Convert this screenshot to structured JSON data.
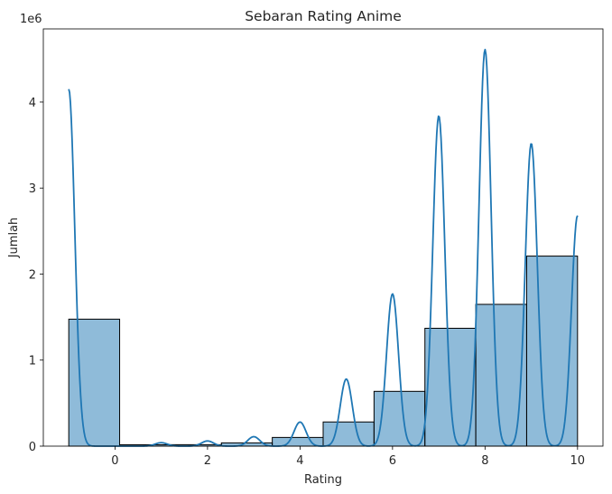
{
  "chart_data": {
    "type": "bar",
    "title": "Sebaran Rating Anime",
    "xlabel": "Rating",
    "ylabel": "Jumlah",
    "y_offset_text": "1e6",
    "xlim": [
      -1.55,
      10.55
    ],
    "ylim": [
      0,
      4.85
    ],
    "x_ticks": [
      0,
      2,
      4,
      6,
      8,
      10
    ],
    "y_ticks": [
      0,
      1,
      2,
      3,
      4
    ],
    "bar_color": "#1f77b4",
    "bar_fill_opacity": 0.5,
    "bar_edge_color": "#000000",
    "kde_color": "#1f77b4",
    "bins": [
      {
        "x0": -1.0,
        "x1": 0.1,
        "value": 1.476
      },
      {
        "x0": 0.1,
        "x1": 1.2,
        "value": 0.016
      },
      {
        "x0": 1.2,
        "x1": 2.3,
        "value": 0.017
      },
      {
        "x0": 2.3,
        "x1": 3.4,
        "value": 0.038
      },
      {
        "x0": 3.4,
        "x1": 4.5,
        "value": 0.101
      },
      {
        "x0": 4.5,
        "x1": 5.6,
        "value": 0.281
      },
      {
        "x0": 5.6,
        "x1": 6.7,
        "value": 0.637
      },
      {
        "x0": 6.7,
        "x1": 7.8,
        "value": 1.37
      },
      {
        "x0": 7.8,
        "x1": 8.9,
        "value": 1.648
      },
      {
        "x0": 8.9,
        "x1": 10.0,
        "value": 2.209
      }
    ],
    "kde_peaks": [
      {
        "x": -1.0,
        "height": 4.15
      },
      {
        "x": 1.0,
        "height": 0.04
      },
      {
        "x": 2.0,
        "height": 0.06
      },
      {
        "x": 3.0,
        "height": 0.11
      },
      {
        "x": 4.0,
        "height": 0.28
      },
      {
        "x": 5.0,
        "height": 0.78
      },
      {
        "x": 6.0,
        "height": 1.77
      },
      {
        "x": 7.0,
        "height": 3.84
      },
      {
        "x": 8.0,
        "height": 4.61
      },
      {
        "x": 9.0,
        "height": 3.52
      },
      {
        "x": 10.0,
        "height": 2.68
      }
    ],
    "kde_bandwidth": 0.13,
    "grid": false,
    "legend": "none"
  }
}
